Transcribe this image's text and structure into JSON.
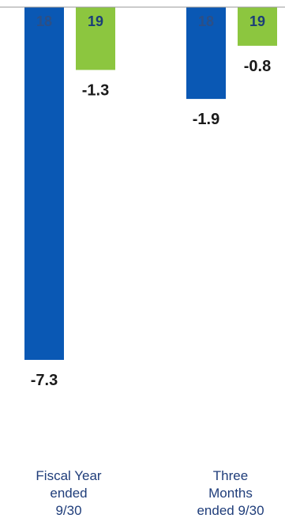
{
  "chart_data": {
    "type": "bar",
    "categories": [
      "Fiscal Year ended 9/30",
      "Three Months ended 9/30"
    ],
    "category_lines": [
      [
        "Fiscal Year",
        "ended",
        "9/30"
      ],
      [
        "Three",
        "Months",
        "ended 9/30"
      ]
    ],
    "series": [
      {
        "name": "18",
        "values": [
          -7.3,
          -1.9
        ],
        "color": "#0a58b4",
        "label_color": "#2c4f86"
      },
      {
        "name": "19",
        "values": [
          -1.3,
          -0.8
        ],
        "color": "#8cc63f",
        "label_color": "#1b3e78"
      }
    ],
    "data_labels": [
      [
        "-7.3",
        "-1.9"
      ],
      [
        "-1.3",
        "-0.8"
      ]
    ],
    "ylim": [
      -7.3,
      0
    ],
    "baseline_color": "#999999"
  }
}
